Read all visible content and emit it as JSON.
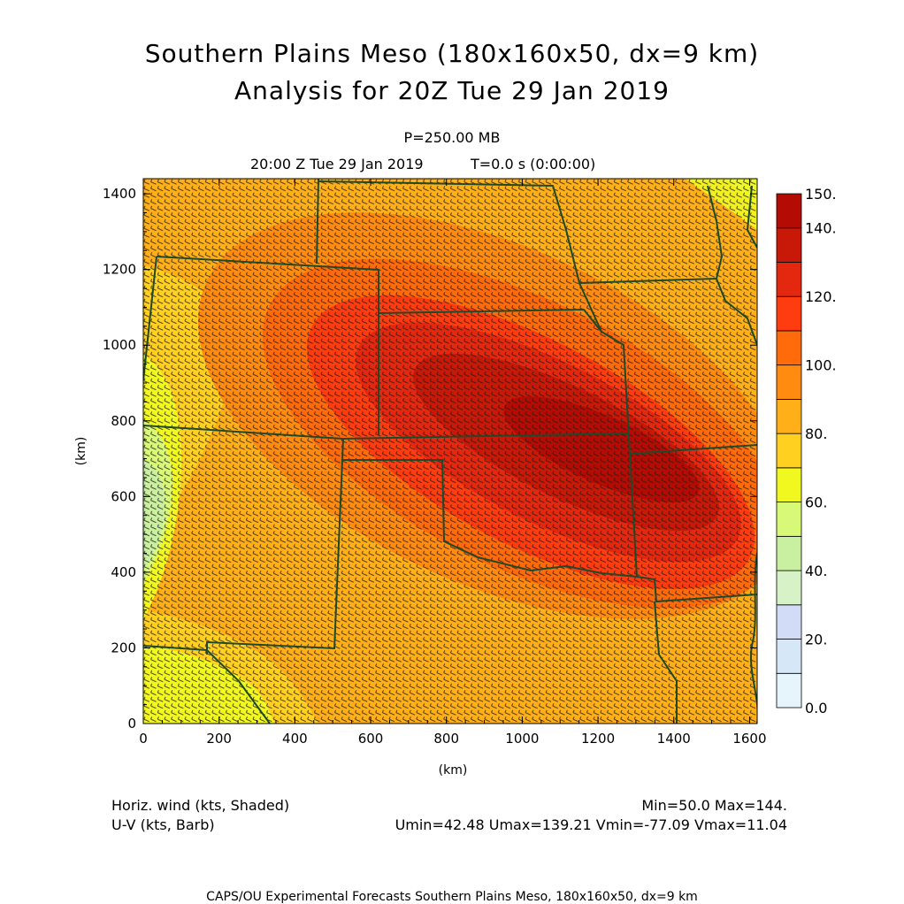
{
  "header": {
    "title_line1": "Southern Plains Meso (180x160x50, dx=9 km)",
    "title_line2": "Analysis for 20Z Tue 29 Jan 2019",
    "level": "P=250.00 MB",
    "valid_time": "20:00 Z Tue 29 Jan 2019",
    "forecast_time": "T=0.0 s (0:00:00)"
  },
  "chart_data": {
    "type": "heatmap",
    "title": "Southern Plains Meso (180x160x50, dx=9 km)",
    "subtitle": "Analysis for 20Z Tue 29 Jan 2019",
    "xlabel": "(km)",
    "ylabel": "(km)",
    "xlim": [
      0,
      1620
    ],
    "ylim": [
      0,
      1440
    ],
    "x_ticks": [
      0,
      200,
      400,
      600,
      800,
      1000,
      1200,
      1400,
      1600
    ],
    "y_ticks": [
      0,
      200,
      400,
      600,
      800,
      1000,
      1200,
      1400
    ],
    "x_tick_labels": [
      "0",
      "200",
      "400",
      "600",
      "800",
      "1000",
      "1200",
      "1400",
      "1600"
    ],
    "y_tick_labels": [
      "0",
      "200",
      "400",
      "600",
      "800",
      "1000",
      "1200",
      "1400"
    ],
    "field": "Horiz. wind (kts, Shaded)",
    "overlay": "U-V (kts, Barb)",
    "min_max": "Min=50.0 Max=144.",
    "component_stats": "Umin=42.48 Umax=139.21 Vmin=-77.09 Vmax=11.04",
    "colorbar": {
      "levels": [
        0,
        10,
        20,
        30,
        40,
        50,
        60,
        70,
        80,
        90,
        100,
        110,
        120,
        130,
        140,
        150
      ],
      "labels": [
        {
          "value": 0,
          "text": "0.0"
        },
        {
          "value": 20,
          "text": "20."
        },
        {
          "value": 40,
          "text": "40."
        },
        {
          "value": 60,
          "text": "60."
        },
        {
          "value": 80,
          "text": "80."
        },
        {
          "value": 100,
          "text": "100."
        },
        {
          "value": 120,
          "text": "120."
        },
        {
          "value": 140,
          "text": "140."
        },
        {
          "value": 150,
          "text": "150."
        }
      ],
      "colors": [
        "#e6f4fc",
        "#d6e8f8",
        "#d2dcf6",
        "#d8f2c8",
        "#c8f0a0",
        "#d8f878",
        "#f0f820",
        "#ffd020",
        "#ffb018",
        "#ff8c10",
        "#ff6a0a",
        "#ff3c10",
        "#e42810",
        "#c81808",
        "#b40c04"
      ]
    },
    "grid": false
  },
  "footer": {
    "field_label": "Horiz. wind (kts, Shaded)",
    "overlay_label": "U-V (kts, Barb)",
    "min_max": "Min=50.0 Max=144.",
    "component_stats": "Umin=42.48 Umax=139.21 Vmin=-77.09 Vmax=11.04",
    "credit": "CAPS/OU Experimental Forecasts  Southern Plains Meso, 180x160x50, dx=9 km"
  },
  "colors": {
    "boundary": "#1f4a2a",
    "barb": "#2a1f14"
  }
}
